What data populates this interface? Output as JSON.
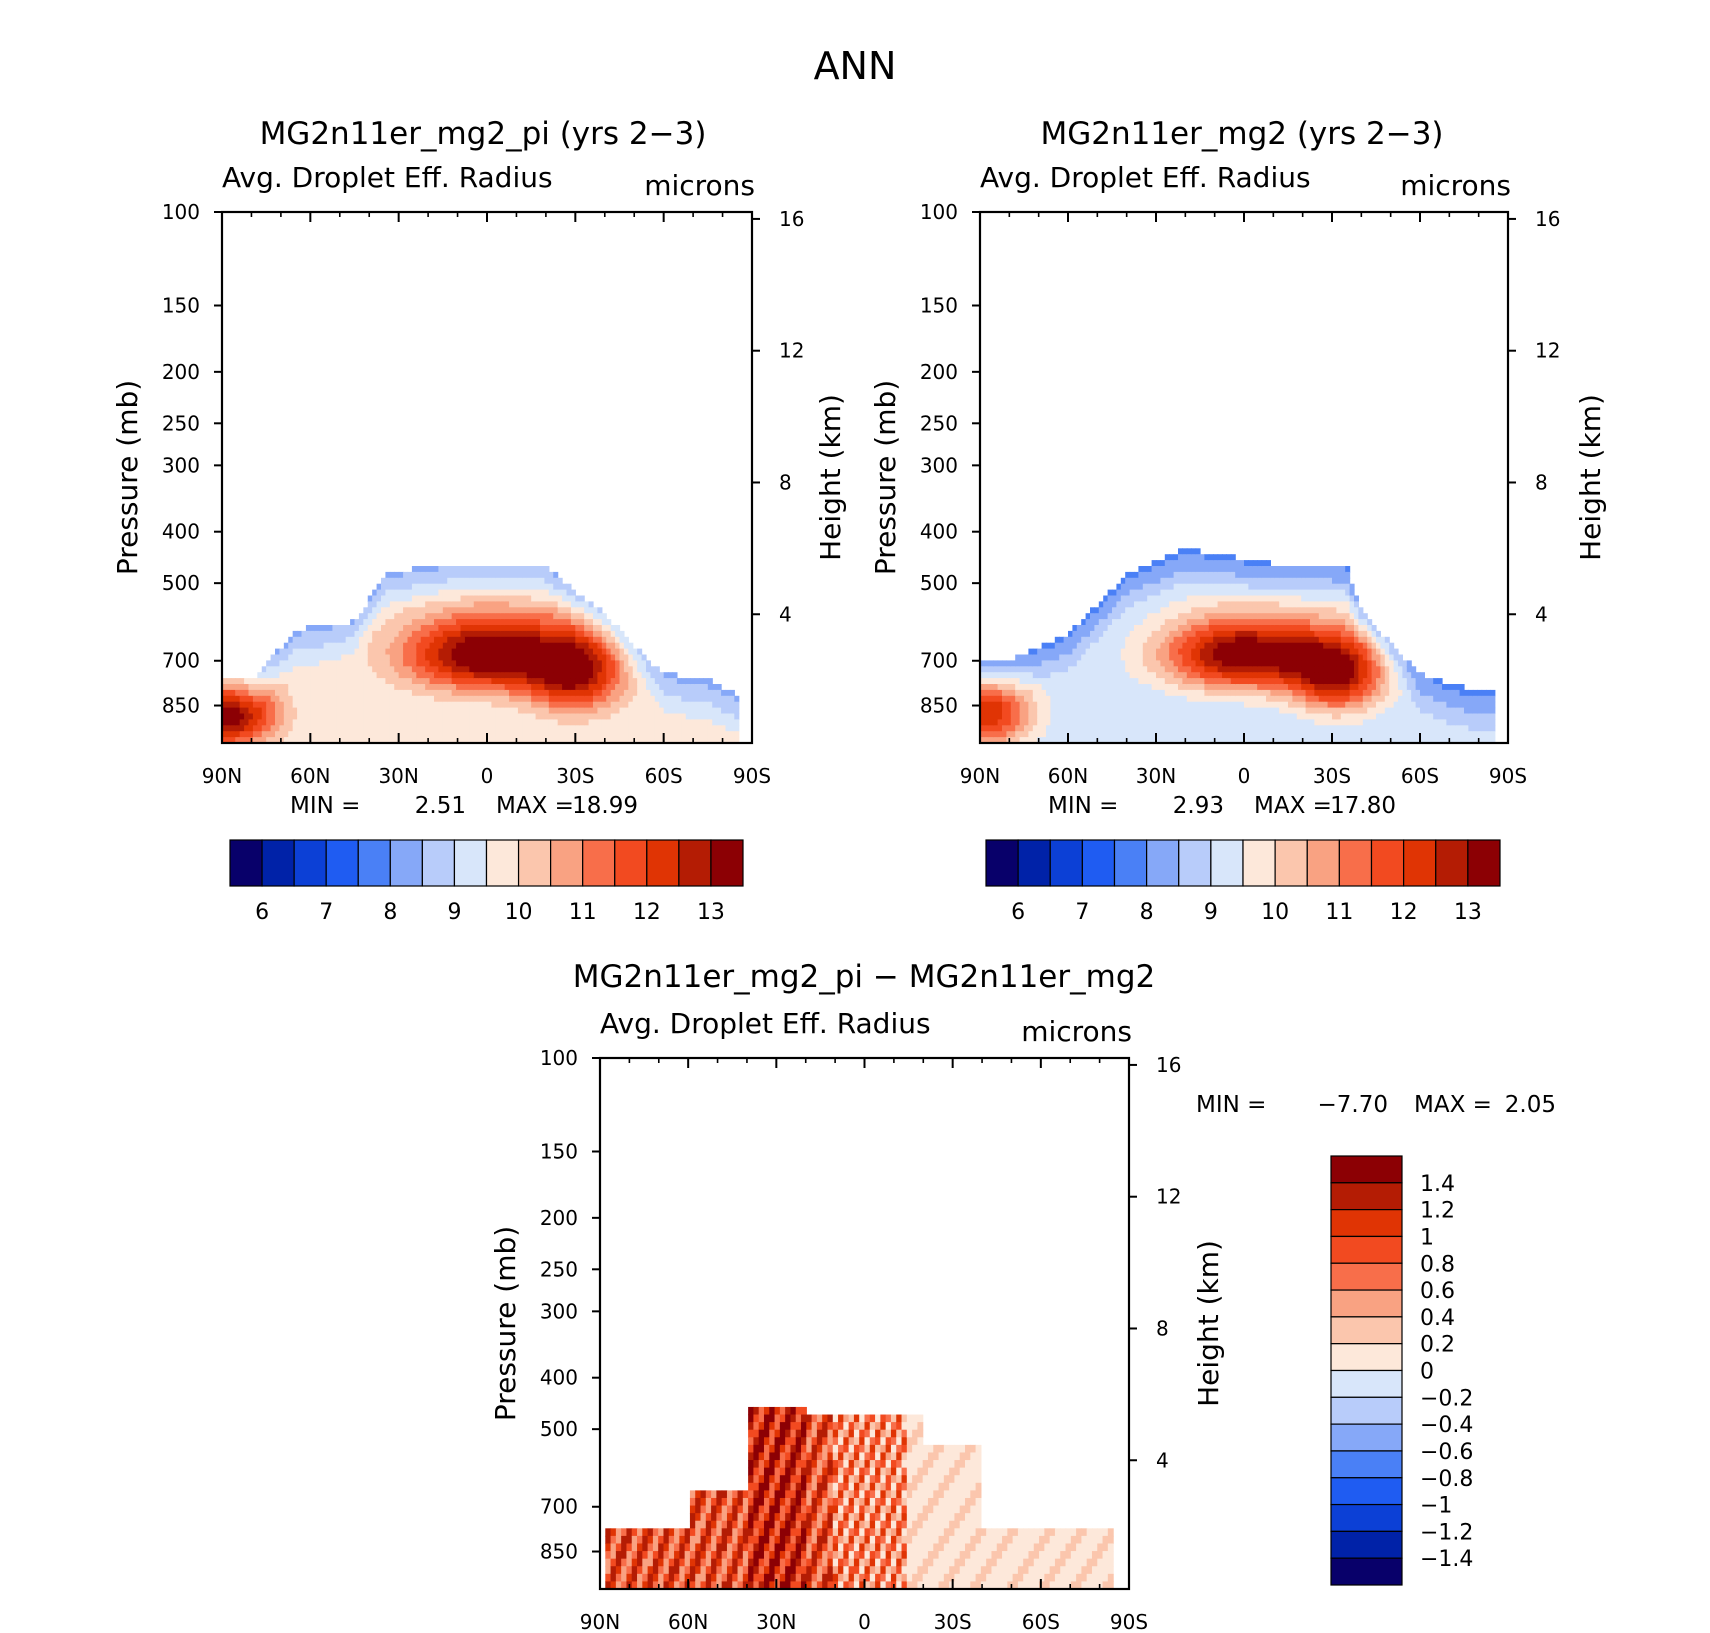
{
  "page_title": "ANN",
  "chart_data": [
    {
      "id": "p1",
      "type": "heatmap",
      "title": "MG2n11er_mg2_pi (yrs 2-3)",
      "title_display": "MG2n11er_mg2_pi (yrs 2−3)",
      "variable": "Avg. Droplet Eff. Radius",
      "units": "microns",
      "ylabel": "Pressure (mb)",
      "y2label": "Height (km)",
      "xticks": [
        "90N",
        "60N",
        "30N",
        "0",
        "30S",
        "60S",
        "90S"
      ],
      "yticks": [
        100,
        150,
        200,
        250,
        300,
        400,
        500,
        700,
        850
      ],
      "y2ticks": [
        16,
        12,
        8,
        4
      ],
      "ylim": [
        100,
        1000
      ],
      "xlim": [
        90,
        -90
      ],
      "min_label": "MIN =",
      "min_value": "2.51",
      "max_label": "MAX =",
      "max_value": "18.99",
      "levels": [
        6,
        6.5,
        7,
        7.5,
        8,
        8.5,
        9,
        9.5,
        10,
        10.5,
        11,
        11.5,
        12,
        12.5,
        13
      ],
      "colorbar_labels": [
        "6",
        "7",
        "8",
        "9",
        "10",
        "11",
        "12",
        "13"
      ],
      "field": {
        "lat_range": [
          90,
          -90
        ],
        "center_p": [
          870,
          660
        ],
        "tops": [
          [
            80,
            760
          ],
          [
            65,
            610
          ],
          [
            45,
            590
          ],
          [
            35,
            480
          ],
          [
            15,
            460
          ],
          [
            -20,
            460
          ],
          [
            -30,
            520
          ],
          [
            -40,
            570
          ],
          [
            -60,
            740
          ],
          [
            -75,
            760
          ],
          [
            -85,
            810
          ]
        ],
        "peaks": [
          {
            "lat": 0,
            "p": 680,
            "value": 13.8
          },
          {
            "lat": -30,
            "p": 740,
            "value": 12.8
          },
          {
            "lat": 88,
            "p": 880,
            "value": 13.5
          }
        ],
        "background": 9.5
      }
    },
    {
      "id": "p2",
      "type": "heatmap",
      "title": "MG2n11er_mg2 (yrs 2-3)",
      "title_display": "MG2n11er_mg2 (yrs 2−3)",
      "variable": "Avg. Droplet Eff. Radius",
      "units": "microns",
      "ylabel": "Pressure (mb)",
      "y2label": "Height (km)",
      "xticks": [
        "90N",
        "60N",
        "30N",
        "0",
        "30S",
        "60S",
        "90S"
      ],
      "yticks": [
        100,
        150,
        200,
        250,
        300,
        400,
        500,
        700,
        850
      ],
      "y2ticks": [
        16,
        12,
        8,
        4
      ],
      "ylim": [
        100,
        1000
      ],
      "xlim": [
        90,
        -90
      ],
      "min_label": "MIN =",
      "min_value": "2.93",
      "max_label": "MAX =",
      "max_value": "17.80",
      "levels": [
        6,
        6.5,
        7,
        7.5,
        8,
        8.5,
        9,
        9.5,
        10,
        10.5,
        11,
        11.5,
        12,
        12.5,
        13
      ],
      "colorbar_labels": [
        "6",
        "7",
        "8",
        "9",
        "10",
        "11",
        "12",
        "13"
      ],
      "field": {
        "lat_range": [
          90,
          -90
        ],
        "center_p": [
          870,
          660
        ],
        "tops": [
          [
            80,
            700
          ],
          [
            60,
            620
          ],
          [
            40,
            480
          ],
          [
            20,
            430
          ],
          [
            -10,
            460
          ],
          [
            -35,
            460
          ],
          [
            -40,
            560
          ],
          [
            -60,
            740
          ],
          [
            -80,
            800
          ]
        ],
        "peaks": [
          {
            "lat": 0,
            "p": 680,
            "value": 13.6
          },
          {
            "lat": -32,
            "p": 740,
            "value": 12.8
          },
          {
            "lat": 88,
            "p": 880,
            "value": 12.5
          }
        ],
        "background": 9.0
      }
    },
    {
      "id": "p3",
      "type": "heatmap",
      "title": "MG2n11er_mg2_pi - MG2n11er_mg2",
      "title_display": "MG2n11er_mg2_pi − MG2n11er_mg2",
      "variable": "Avg. Droplet Eff. Radius",
      "units": "microns",
      "ylabel": "Pressure (mb)",
      "y2label": "Height (km)",
      "xticks": [
        "90N",
        "60N",
        "30N",
        "0",
        "30S",
        "60S",
        "90S"
      ],
      "yticks": [
        100,
        150,
        200,
        250,
        300,
        400,
        500,
        700,
        850
      ],
      "y2ticks": [
        16,
        12,
        8,
        4
      ],
      "ylim": [
        100,
        1000
      ],
      "xlim": [
        90,
        -90
      ],
      "min_label": "MIN =",
      "min_value": "−7.70",
      "max_label": "MAX =",
      "max_value": "2.05",
      "levels": [
        -1.4,
        -1.2,
        -1,
        -0.8,
        -0.6,
        -0.4,
        -0.2,
        0,
        0.2,
        0.4,
        0.6,
        0.8,
        1,
        1.2,
        1.4
      ],
      "colorbar_labels": [
        "1.4",
        "1.2",
        "1",
        "0.8",
        "0.6",
        "0.4",
        "0.2",
        "0",
        "−0.2",
        "−0.4",
        "−0.6",
        "−0.8",
        "−1",
        "−1.2",
        "−1.4"
      ]
    }
  ],
  "colormap": [
    "#08006a",
    "#0022a8",
    "#0c40d6",
    "#1f5cf2",
    "#4a80f6",
    "#86a8f8",
    "#b8ccfa",
    "#d8e6fa",
    "#fde8da",
    "#fbc6ad",
    "#f9a282",
    "#f86e4a",
    "#f24a20",
    "#e03404",
    "#b41c04",
    "#8c0004"
  ]
}
